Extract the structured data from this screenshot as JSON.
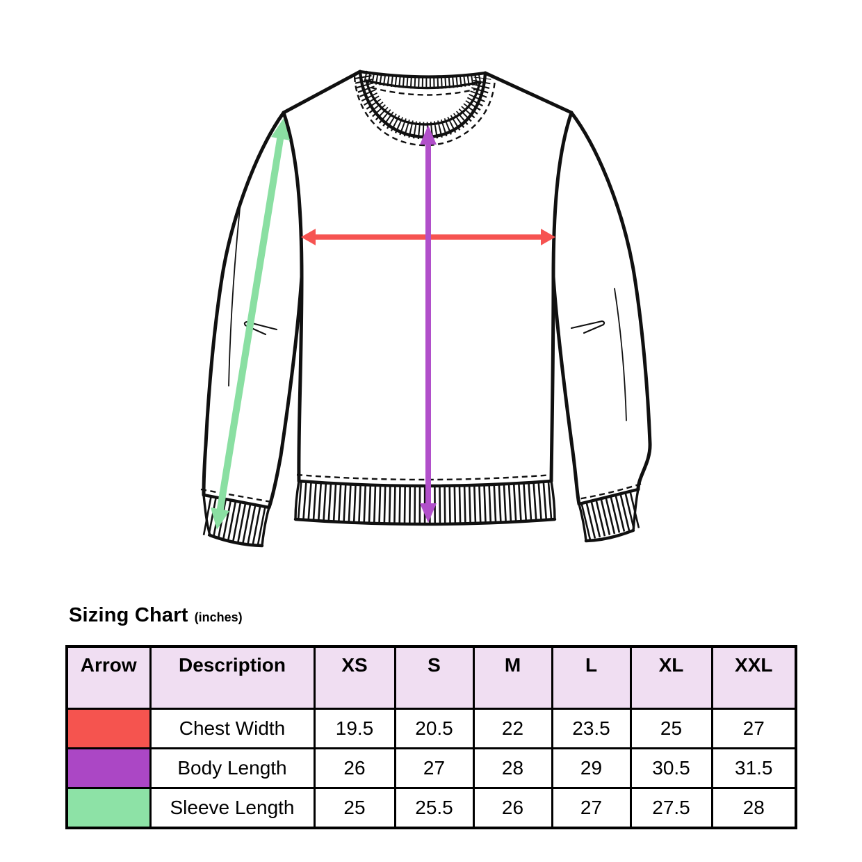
{
  "title": {
    "main": "Sizing Chart",
    "unit": "(inches)"
  },
  "colors": {
    "chest-arrow": "#f65351",
    "body-arrow": "#b14fca",
    "sleeve-arrow": "#8adfa2",
    "header-bg": "#f0def2",
    "line": "#101010"
  },
  "diagram": {
    "description": "Flat technical line drawing of a crew-neck sweatshirt with ribbed collar, cuffs and hem, annotated with three measurement arrows",
    "arrows": [
      {
        "name": "chest-width-arrow",
        "measures": "Chest Width",
        "color": "#f65351",
        "orientation": "horizontal double-headed arrow across the chest"
      },
      {
        "name": "body-length-arrow",
        "measures": "Body Length",
        "color": "#b14fca",
        "orientation": "vertical double-headed arrow from collar to hem"
      },
      {
        "name": "sleeve-length-arrow",
        "measures": "Sleeve Length",
        "color": "#8adfa2",
        "orientation": "diagonal double-headed arrow along the left sleeve"
      }
    ]
  },
  "table": {
    "headers": [
      "Arrow",
      "Description",
      "XS",
      "S",
      "M",
      "L",
      "XL",
      "XXL"
    ],
    "rows": [
      {
        "swatch": "#f5544f",
        "description": "Chest Width",
        "values": [
          "19.5",
          "20.5",
          "22",
          "23.5",
          "25",
          "27"
        ]
      },
      {
        "swatch": "#ab47c5",
        "description": "Body Length",
        "values": [
          "26",
          "27",
          "28",
          "29",
          "30.5",
          "31.5"
        ]
      },
      {
        "swatch": "#8de2a6",
        "description": "Sleeve Length",
        "values": [
          "25",
          "25.5",
          "26",
          "27",
          "27.5",
          "28"
        ]
      }
    ]
  },
  "chart_data": {
    "type": "table",
    "title": "Sizing Chart (inches)",
    "columns": [
      "Arrow",
      "Description",
      "XS",
      "S",
      "M",
      "L",
      "XL",
      "XXL"
    ],
    "rows": [
      [
        "red",
        "Chest Width",
        19.5,
        20.5,
        22,
        23.5,
        25,
        27
      ],
      [
        "purple",
        "Body Length",
        26,
        27,
        28,
        29,
        30.5,
        31.5
      ],
      [
        "green",
        "Sleeve Length",
        25,
        25.5,
        26,
        27,
        27.5,
        28
      ]
    ]
  }
}
